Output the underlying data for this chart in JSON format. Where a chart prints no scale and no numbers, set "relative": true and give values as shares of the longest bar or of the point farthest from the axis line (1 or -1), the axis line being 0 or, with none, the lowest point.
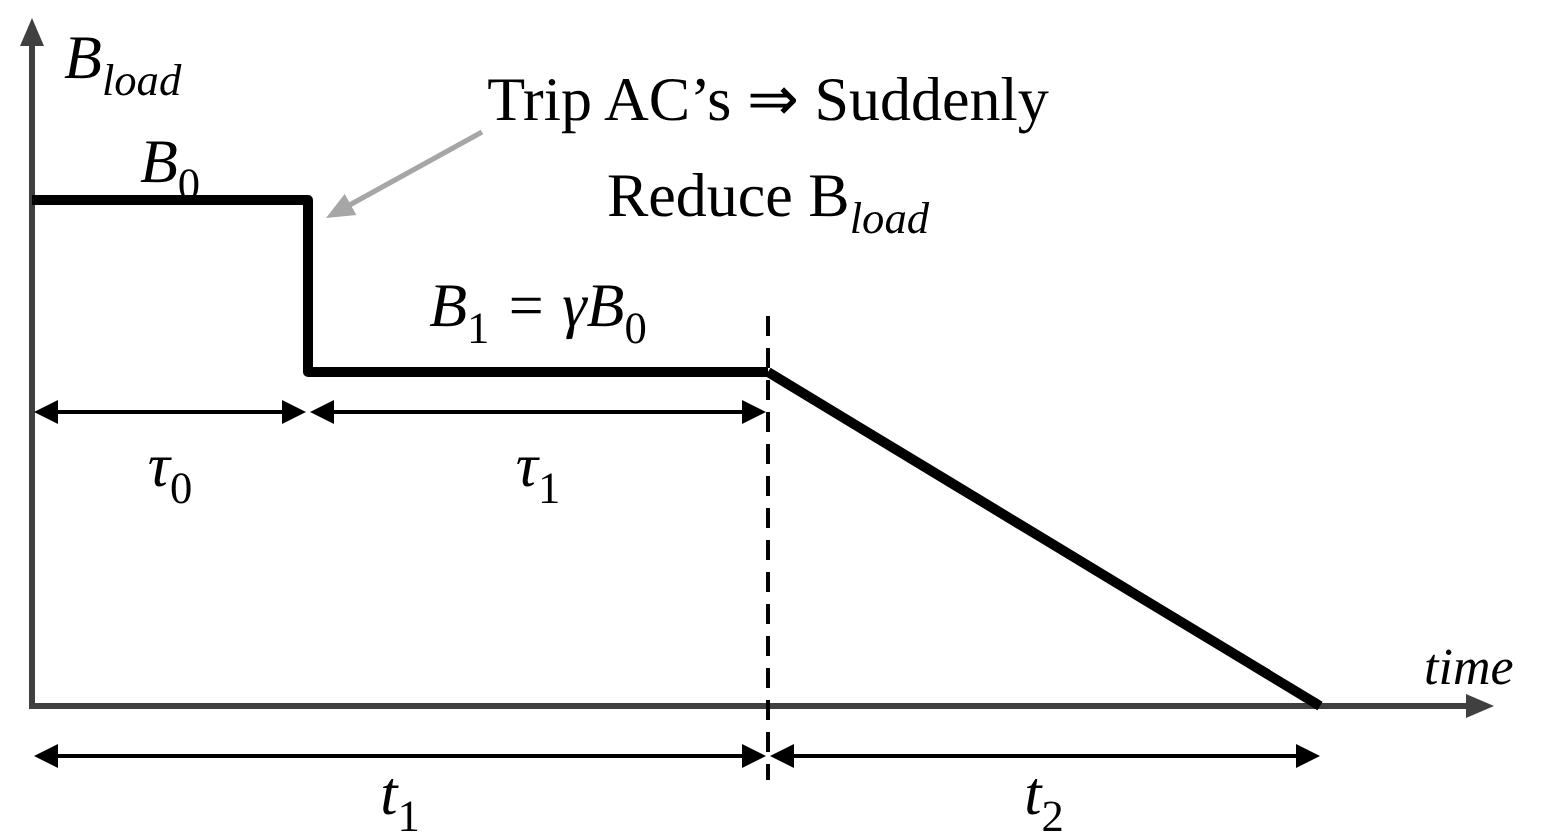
{
  "chart_data": {
    "type": "line",
    "relative": true,
    "xlabel": "time",
    "ylabel": "B$_{load}$",
    "categories": [
      null,
      null,
      null,
      null,
      null,
      null,
      null,
      null,
      null,
      null,
      null,
      null,
      null,
      null,
      null
    ],
    "series": [
      {
        "type": "step",
        "color": "#000000",
        "values": [
          1,
          1,
          1,
          0.66,
          0.66,
          0.66,
          0.66,
          0.66,
          0.66,
          null,
          null,
          null,
          null,
          null,
          null
        ]
      },
      {
        "type": "line",
        "color": "#000000",
        "values": [
          null,
          null,
          null,
          null,
          null,
          null,
          null,
          null,
          0.66,
          0.55,
          0.44,
          0.33,
          0.22,
          0.11,
          0
        ]
      }
    ],
    "annotations": [
      "Trip AC’s ⇒ Suddenly\nReduce B$_{load}$",
      "B$_{0}$",
      "B$_{1}$ = γB$_{0}$",
      "τ$_{0}$",
      "τ$_{1}$",
      "t$_{1}$",
      "t$_{2}$"
    ]
  }
}
